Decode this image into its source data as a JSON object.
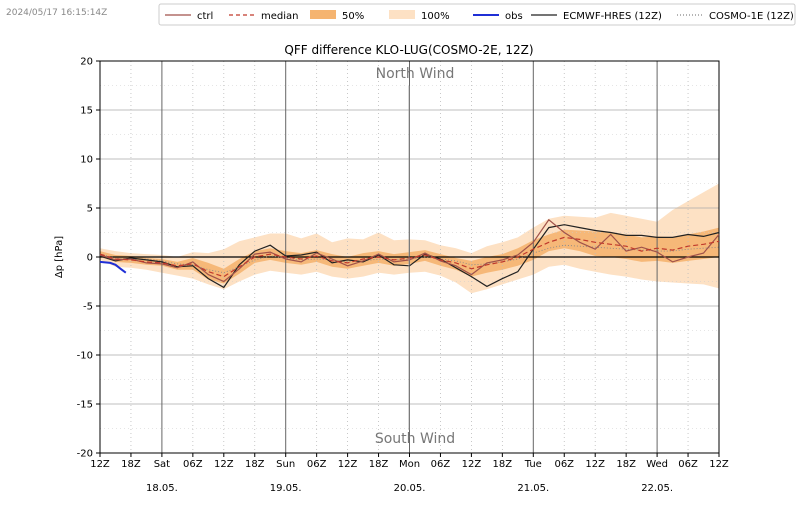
{
  "timestamp": "2024/05/17 16:15:14Z",
  "legend": [
    {
      "label": "ctrl",
      "style": "solid",
      "color": "#a0524a"
    },
    {
      "label": "median",
      "style": "dashed",
      "color": "#c0392b"
    },
    {
      "label": "50%",
      "style": "fill",
      "color": "#f5b470"
    },
    {
      "label": "100%",
      "style": "fill",
      "color": "#fde1c4"
    },
    {
      "label": "obs",
      "style": "solid",
      "color": "#1f2fd6"
    },
    {
      "label": "ECMWF-HRES (12Z)",
      "style": "solid",
      "color": "#222222"
    },
    {
      "label": "COSMO-1E (12Z)",
      "style": "dotted",
      "color": "#888888"
    }
  ],
  "chart_data": {
    "type": "line",
    "title": "QFF difference KLO-LUG(COSMO-2E, 12Z)",
    "ylabel": "Δp [hPa]",
    "xlabel": "",
    "ylim": [
      -20,
      20
    ],
    "xlim_hours": [
      0,
      120
    ],
    "yticks": [
      -20,
      -15,
      -10,
      -5,
      0,
      5,
      10,
      15,
      20
    ],
    "grid": true,
    "legend_position": "top",
    "annotations": {
      "top": "North Wind",
      "bottom": "South Wind"
    },
    "xticks": [
      {
        "h": 0,
        "label": "12Z"
      },
      {
        "h": 6,
        "label": "18Z"
      },
      {
        "h": 12,
        "label": "Sat"
      },
      {
        "h": 18,
        "label": "06Z"
      },
      {
        "h": 24,
        "label": "12Z"
      },
      {
        "h": 30,
        "label": "18Z"
      },
      {
        "h": 36,
        "label": "Sun"
      },
      {
        "h": 42,
        "label": "06Z"
      },
      {
        "h": 48,
        "label": "12Z"
      },
      {
        "h": 54,
        "label": "18Z"
      },
      {
        "h": 60,
        "label": "Mon"
      },
      {
        "h": 66,
        "label": "06Z"
      },
      {
        "h": 72,
        "label": "12Z"
      },
      {
        "h": 78,
        "label": "18Z"
      },
      {
        "h": 84,
        "label": "Tue"
      },
      {
        "h": 90,
        "label": "06Z"
      },
      {
        "h": 96,
        "label": "12Z"
      },
      {
        "h": 102,
        "label": "18Z"
      },
      {
        "h": 108,
        "label": "Wed"
      },
      {
        "h": 114,
        "label": "06Z"
      },
      {
        "h": 120,
        "label": "12Z"
      }
    ],
    "date_labels": [
      {
        "h": 12,
        "label": "18.05."
      },
      {
        "h": 36,
        "label": "19.05."
      },
      {
        "h": 60,
        "label": "20.05."
      },
      {
        "h": 84,
        "label": "21.05."
      },
      {
        "h": 108,
        "label": "22.05."
      }
    ],
    "x": [
      0,
      3,
      6,
      9,
      12,
      15,
      18,
      21,
      24,
      27,
      30,
      33,
      36,
      39,
      42,
      45,
      48,
      51,
      54,
      57,
      60,
      63,
      66,
      69,
      72,
      75,
      78,
      81,
      84,
      87,
      90,
      93,
      96,
      99,
      102,
      105,
      108,
      111,
      114,
      117,
      120
    ],
    "series": [
      {
        "name": "median",
        "values": [
          0.3,
          -0.2,
          -0.3,
          -0.5,
          -0.6,
          -0.9,
          -0.7,
          -1.5,
          -2.0,
          -1.0,
          0.0,
          0.3,
          0.0,
          -0.2,
          0.1,
          -0.4,
          -0.6,
          -0.2,
          0.0,
          -0.3,
          -0.1,
          0.2,
          -0.3,
          -0.6,
          -1.2,
          -0.8,
          -0.5,
          0.0,
          0.8,
          1.5,
          2.0,
          1.8,
          1.5,
          1.3,
          1.1,
          0.6,
          0.9,
          0.7,
          1.1,
          1.3,
          1.6
        ]
      },
      {
        "name": "ctrl",
        "values": [
          0.2,
          -0.3,
          -0.2,
          -0.6,
          -0.7,
          -1.1,
          -0.5,
          -1.8,
          -2.5,
          -1.2,
          0.3,
          0.5,
          -0.2,
          -0.5,
          0.4,
          -0.2,
          -0.9,
          -0.4,
          0.3,
          -0.5,
          -0.3,
          0.4,
          -0.4,
          -0.9,
          -1.8,
          -0.6,
          -0.3,
          0.2,
          1.5,
          3.8,
          2.5,
          1.5,
          0.8,
          2.3,
          0.6,
          1.0,
          0.5,
          -0.5,
          0.0,
          0.4,
          2.3
        ]
      },
      {
        "name": "ECMWF-HRES (12Z)",
        "values": [
          0.1,
          -0.4,
          -0.1,
          -0.3,
          -0.5,
          -1.0,
          -0.9,
          -2.2,
          -3.1,
          -0.8,
          0.6,
          1.2,
          0.1,
          0.2,
          0.5,
          -0.6,
          -0.3,
          -0.5,
          0.2,
          -0.8,
          -0.9,
          0.3,
          -0.2,
          -1.1,
          -2.0,
          -3.0,
          -2.2,
          -1.5,
          0.8,
          3.0,
          3.3,
          3.0,
          2.7,
          2.5,
          2.2,
          2.2,
          2.0,
          2.0,
          2.3,
          2.1,
          2.5
        ]
      },
      {
        "name": "COSMO-1E (12Z)",
        "values": [
          0.3,
          -0.1,
          -0.2,
          -0.2,
          -0.4,
          -0.7,
          -0.8,
          -1.3,
          -1.6,
          -1.0,
          -0.3,
          0.1,
          -0.1,
          -0.3,
          -0.2,
          -0.3,
          -0.5,
          -0.4,
          -0.2,
          -0.3,
          -0.2,
          0.0,
          -0.2,
          -0.4,
          -0.8,
          -0.7,
          -0.5,
          -0.2,
          0.4,
          0.9,
          1.2,
          1.1,
          1.0,
          0.9,
          0.8,
          0.7,
          0.6,
          0.6,
          0.8,
          0.9,
          1.0
        ]
      },
      {
        "name": "obs",
        "x": [
          0,
          2,
          3,
          4,
          5
        ],
        "values": [
          -0.5,
          -0.6,
          -0.8,
          -1.2,
          -1.6
        ]
      }
    ],
    "bands": [
      {
        "name": "50%",
        "lower": [
          0.0,
          -0.5,
          -0.6,
          -0.8,
          -0.9,
          -1.3,
          -1.3,
          -2.3,
          -2.7,
          -1.7,
          -0.6,
          -0.3,
          -0.6,
          -0.8,
          -0.5,
          -1.0,
          -1.2,
          -0.9,
          -0.6,
          -0.9,
          -0.7,
          -0.4,
          -0.9,
          -1.3,
          -2.0,
          -1.6,
          -1.3,
          -0.9,
          -0.3,
          0.6,
          0.9,
          0.6,
          0.1,
          0.0,
          -0.2,
          -0.5,
          -0.4,
          -0.6,
          -0.4,
          -0.2,
          0.0
        ],
        "upper": [
          0.6,
          0.2,
          0.1,
          -0.1,
          -0.2,
          -0.5,
          -0.1,
          -0.6,
          -1.2,
          -0.2,
          0.6,
          0.9,
          0.6,
          0.4,
          0.7,
          0.3,
          0.0,
          0.4,
          0.6,
          0.3,
          0.5,
          0.7,
          0.3,
          -0.1,
          -0.4,
          0.0,
          0.3,
          0.9,
          1.7,
          2.3,
          2.8,
          2.7,
          2.6,
          2.5,
          2.3,
          2.0,
          2.1,
          2.0,
          2.3,
          2.6,
          3.0
        ]
      },
      {
        "name": "100%",
        "lower": [
          -0.3,
          -1.0,
          -1.1,
          -1.3,
          -1.6,
          -1.9,
          -2.2,
          -2.8,
          -3.3,
          -2.5,
          -1.8,
          -1.4,
          -1.6,
          -1.8,
          -1.5,
          -2.0,
          -2.2,
          -2.0,
          -1.6,
          -1.8,
          -1.6,
          -1.5,
          -1.9,
          -2.6,
          -3.7,
          -3.3,
          -2.8,
          -2.3,
          -1.8,
          -1.0,
          -0.8,
          -1.2,
          -1.5,
          -1.8,
          -2.0,
          -2.3,
          -2.5,
          -2.6,
          -2.7,
          -2.8,
          -3.2
        ]
      },
      {
        "name": "100%_upper",
        "upper": [
          0.9,
          0.6,
          0.4,
          0.3,
          0.2,
          0.0,
          0.5,
          0.4,
          0.8,
          1.6,
          2.0,
          2.4,
          2.4,
          1.9,
          2.4,
          1.5,
          1.9,
          1.8,
          2.5,
          1.7,
          1.8,
          1.7,
          1.2,
          0.9,
          0.4,
          1.1,
          1.5,
          2.0,
          3.0,
          3.9,
          4.2,
          4.1,
          4.0,
          4.5,
          4.2,
          3.9,
          3.6,
          4.8,
          5.7,
          6.6,
          7.5
        ]
      }
    ]
  }
}
